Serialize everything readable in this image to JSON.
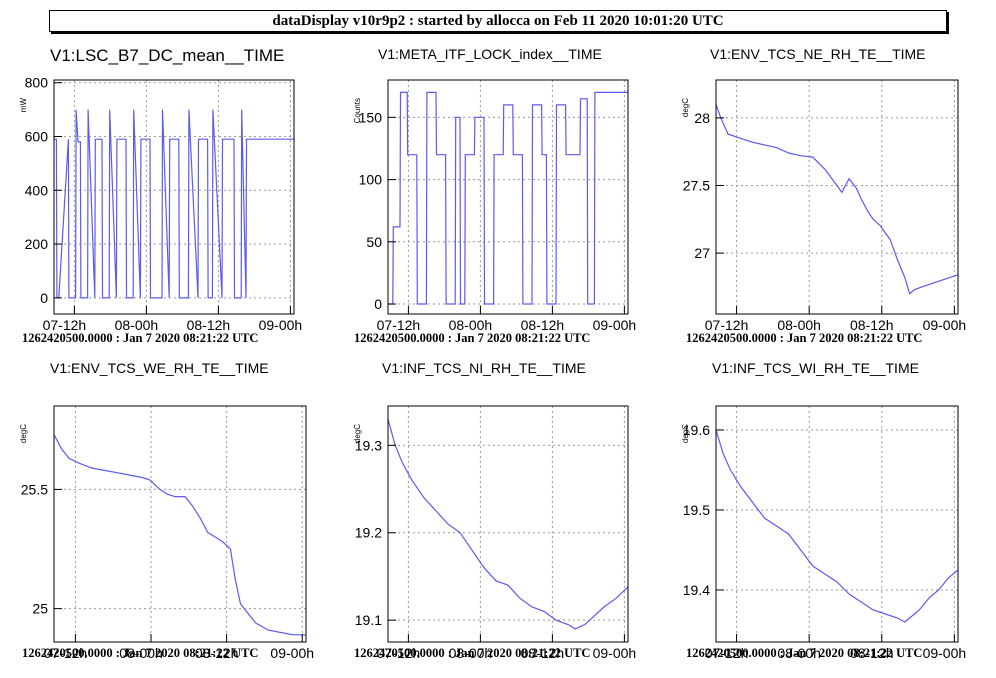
{
  "header": {
    "title": "dataDisplay v10r9p2 : started by allocca on Feb 11 2020 10:01:20 UTC"
  },
  "colors": {
    "series": "#5b5bf0",
    "grid": "#9a9a9a",
    "frame": "#000000"
  },
  "x_ticks": [
    "07-12h",
    "08-00h",
    "08-12h",
    "09-00h"
  ],
  "chart_data": [
    {
      "type": "line",
      "title": "V1:LSC_B7_DC_mean__TIME",
      "ylabel": "mW",
      "footer": "1262420500.0000 : Jan  7 2020 08:21:22 UTC",
      "xlim": [
        0,
        1
      ],
      "ylim": [
        -60,
        810
      ],
      "yticks": [
        0,
        200,
        400,
        600,
        800
      ],
      "ytick_labels": [
        "0",
        "200",
        "400",
        "600",
        "800"
      ],
      "x_ticks_at": [
        0.085,
        0.385,
        0.685,
        0.985
      ],
      "x": [
        0,
        0.01,
        0.012,
        0.02,
        0.06,
        0.062,
        0.09,
        0.092,
        0.1,
        0.11,
        0.112,
        0.14,
        0.142,
        0.17,
        0.172,
        0.2,
        0.202,
        0.23,
        0.232,
        0.26,
        0.262,
        0.3,
        0.302,
        0.33,
        0.332,
        0.36,
        0.362,
        0.4,
        0.402,
        0.45,
        0.452,
        0.48,
        0.482,
        0.52,
        0.522,
        0.56,
        0.562,
        0.6,
        0.602,
        0.64,
        0.642,
        0.66,
        0.662,
        0.7,
        0.702,
        0.75,
        0.752,
        0.78,
        0.782,
        0.8,
        0.802,
        1.0
      ],
      "y": [
        590,
        590,
        0,
        0,
        590,
        0,
        0,
        700,
        580,
        580,
        0,
        0,
        700,
        0,
        590,
        590,
        0,
        0,
        700,
        0,
        590,
        590,
        0,
        0,
        700,
        0,
        590,
        590,
        0,
        0,
        700,
        0,
        590,
        590,
        0,
        0,
        700,
        0,
        590,
        590,
        0,
        0,
        700,
        0,
        590,
        590,
        0,
        0,
        700,
        0,
        590,
        590
      ]
    },
    {
      "type": "line",
      "title": "V1:META_ITF_LOCK_index__TIME",
      "ylabel": "Counts",
      "footer": "1262420500.0000 : Jan  7 2020 08:21:22 UTC",
      "xlim": [
        0,
        1
      ],
      "ylim": [
        -8,
        180
      ],
      "yticks": [
        0,
        50,
        100,
        150
      ],
      "ytick_labels": [
        "0",
        "50",
        "100",
        "150"
      ],
      "x_ticks_at": [
        0.085,
        0.385,
        0.685,
        0.985
      ],
      "x": [
        0,
        0.02,
        0.022,
        0.05,
        0.052,
        0.08,
        0.082,
        0.12,
        0.122,
        0.16,
        0.162,
        0.2,
        0.202,
        0.24,
        0.242,
        0.28,
        0.282,
        0.3,
        0.302,
        0.32,
        0.322,
        0.36,
        0.362,
        0.4,
        0.402,
        0.44,
        0.442,
        0.48,
        0.482,
        0.52,
        0.522,
        0.56,
        0.562,
        0.6,
        0.602,
        0.64,
        0.642,
        0.66,
        0.662,
        0.7,
        0.702,
        0.74,
        0.742,
        0.8,
        0.802,
        0.83,
        0.832,
        0.86,
        0.862,
        1.0
      ],
      "y": [
        0,
        0,
        62,
        62,
        170,
        170,
        120,
        120,
        0,
        0,
        170,
        170,
        120,
        120,
        0,
        0,
        150,
        150,
        0,
        0,
        120,
        120,
        150,
        150,
        0,
        0,
        120,
        120,
        160,
        160,
        120,
        120,
        0,
        0,
        160,
        160,
        120,
        120,
        0,
        0,
        160,
        160,
        120,
        120,
        165,
        165,
        0,
        0,
        170,
        170
      ]
    },
    {
      "type": "line",
      "title": "V1:ENV_TCS_NE_RH_TE__TIME",
      "ylabel": "degC",
      "footer": "1262420500.0000 : Jan  7 2020 08:21:22 UTC",
      "xlim": [
        0,
        1
      ],
      "ylim": [
        26.55,
        28.28
      ],
      "yticks": [
        27,
        27.5,
        28
      ],
      "ytick_labels": [
        "27",
        "27.5",
        "28"
      ],
      "x_ticks_at": [
        0.085,
        0.385,
        0.685,
        0.985
      ],
      "x": [
        0,
        0.02,
        0.05,
        0.1,
        0.15,
        0.2,
        0.25,
        0.3,
        0.35,
        0.4,
        0.45,
        0.5,
        0.52,
        0.55,
        0.58,
        0.6,
        0.63,
        0.65,
        0.68,
        0.72,
        0.75,
        0.78,
        0.8,
        0.82,
        0.85,
        0.9,
        0.95,
        1.0
      ],
      "y": [
        28.1,
        28.0,
        27.88,
        27.85,
        27.82,
        27.8,
        27.78,
        27.74,
        27.72,
        27.71,
        27.62,
        27.5,
        27.45,
        27.55,
        27.48,
        27.4,
        27.3,
        27.25,
        27.2,
        27.1,
        26.95,
        26.82,
        26.7,
        26.73,
        26.75,
        26.78,
        26.81,
        26.84
      ]
    },
    {
      "type": "line",
      "title": "V1:ENV_TCS_WE_RH_TE__TIME",
      "ylabel": "degC",
      "footer": "1262420500.0000 : Jan  7 2020 08:21:22 UTC",
      "xlim": [
        0,
        1
      ],
      "ylim": [
        24.86,
        25.85
      ],
      "yticks": [
        25,
        25.5
      ],
      "ytick_labels": [
        "25",
        "25.5"
      ],
      "x_ticks_at": [
        0.085,
        0.385,
        0.685,
        0.985
      ],
      "x": [
        0,
        0.03,
        0.06,
        0.1,
        0.15,
        0.2,
        0.25,
        0.3,
        0.35,
        0.38,
        0.42,
        0.45,
        0.48,
        0.52,
        0.55,
        0.58,
        0.61,
        0.64,
        0.67,
        0.7,
        0.72,
        0.74,
        0.77,
        0.8,
        0.85,
        0.9,
        0.95,
        1.0
      ],
      "y": [
        25.73,
        25.67,
        25.63,
        25.61,
        25.59,
        25.58,
        25.57,
        25.56,
        25.55,
        25.54,
        25.5,
        25.48,
        25.47,
        25.47,
        25.43,
        25.38,
        25.32,
        25.3,
        25.28,
        25.25,
        25.12,
        25.02,
        24.98,
        24.94,
        24.91,
        24.9,
        24.89,
        24.89
      ]
    },
    {
      "type": "line",
      "title": "V1:INF_TCS_NI_RH_TE__TIME",
      "ylabel": "degC",
      "footer": "1262420500.0000 : Jan  7 2020 08:21:22 UTC",
      "xlim": [
        0,
        1
      ],
      "ylim": [
        19.075,
        19.345
      ],
      "yticks": [
        19.1,
        19.2,
        19.3
      ],
      "ytick_labels": [
        "19.1",
        "19.2",
        "19.3"
      ],
      "x_ticks_at": [
        0.085,
        0.385,
        0.685,
        0.985
      ],
      "x": [
        0,
        0.03,
        0.06,
        0.1,
        0.15,
        0.2,
        0.25,
        0.3,
        0.35,
        0.4,
        0.45,
        0.5,
        0.55,
        0.6,
        0.65,
        0.7,
        0.75,
        0.78,
        0.82,
        0.86,
        0.9,
        0.95,
        1.0
      ],
      "y": [
        19.33,
        19.3,
        19.28,
        19.26,
        19.24,
        19.225,
        19.21,
        19.2,
        19.18,
        19.16,
        19.145,
        19.14,
        19.125,
        19.115,
        19.11,
        19.1,
        19.095,
        19.09,
        19.095,
        19.105,
        19.115,
        19.125,
        19.138
      ]
    },
    {
      "type": "line",
      "title": "V1:INF_TCS_WI_RH_TE__TIME",
      "ylabel": "degC",
      "footer": "1262420500.0000 : Jan  7 2020 08:21:22 UTC",
      "xlim": [
        0,
        1
      ],
      "ylim": [
        19.335,
        19.63
      ],
      "yticks": [
        19.4,
        19.5,
        19.6
      ],
      "ytick_labels": [
        "19.4",
        "19.5",
        "19.6"
      ],
      "x_ticks_at": [
        0.085,
        0.385,
        0.685,
        0.985
      ],
      "x": [
        0,
        0.03,
        0.06,
        0.1,
        0.15,
        0.2,
        0.25,
        0.3,
        0.35,
        0.4,
        0.45,
        0.5,
        0.55,
        0.6,
        0.65,
        0.7,
        0.75,
        0.78,
        0.8,
        0.84,
        0.88,
        0.92,
        0.96,
        1.0
      ],
      "y": [
        19.6,
        19.57,
        19.55,
        19.53,
        19.51,
        19.49,
        19.48,
        19.47,
        19.45,
        19.43,
        19.42,
        19.41,
        19.395,
        19.385,
        19.375,
        19.37,
        19.365,
        19.36,
        19.365,
        19.375,
        19.39,
        19.4,
        19.415,
        19.425
      ]
    }
  ]
}
